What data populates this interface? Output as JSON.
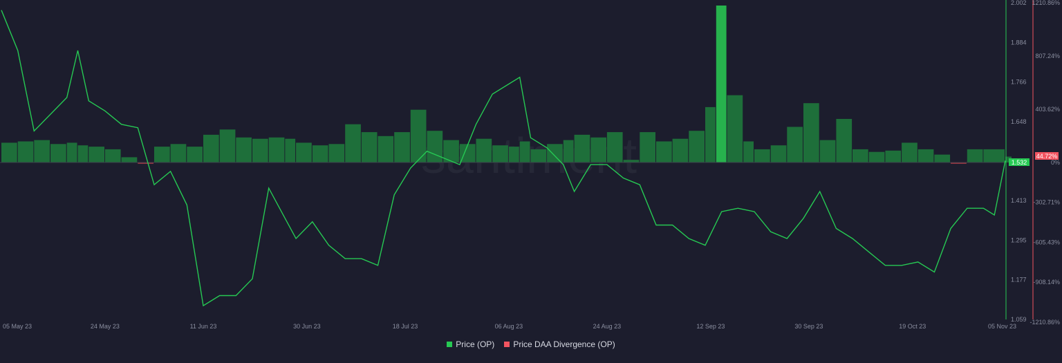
{
  "chart_data": {
    "type": "line+bar",
    "watermark": "santiment",
    "x_ticks": [
      "05 May 23",
      "24 May 23",
      "11 Jun 23",
      "30 Jun 23",
      "18 Jul 23",
      "06 Aug 23",
      "24 Aug 23",
      "12 Sep 23",
      "30 Sep 23",
      "19 Oct 23",
      "05 Nov 23"
    ],
    "left_axis": {
      "label": "",
      "ticks": [
        "2.002",
        "1.884",
        "1.766",
        "1.648",
        "1.532",
        "1.413",
        "1.295",
        "1.177",
        "1.059"
      ],
      "range": [
        1.059,
        2.002
      ]
    },
    "right_axis": {
      "label": "",
      "ticks": [
        "1210.86%",
        "807.24%",
        "403.62%",
        "0%",
        "-302.71%",
        "-605.43%",
        "-908.14%",
        "-1210.86%"
      ],
      "range": [
        -1210.86,
        1210.86
      ]
    },
    "current_price_label": "1.532",
    "current_divergence_label": "44.72%",
    "series": [
      {
        "name": "Price (OP)",
        "color": "#26c953",
        "axis": "left",
        "points": [
          [
            "05 May 23",
            1.98
          ],
          [
            "08 May 23",
            1.86
          ],
          [
            "11 May 23",
            1.62
          ],
          [
            "14 May 23",
            1.67
          ],
          [
            "17 May 23",
            1.72
          ],
          [
            "19 May 23",
            1.86
          ],
          [
            "21 May 23",
            1.71
          ],
          [
            "24 May 23",
            1.68
          ],
          [
            "27 May 23",
            1.64
          ],
          [
            "30 May 23",
            1.63
          ],
          [
            "02 Jun 23",
            1.46
          ],
          [
            "05 Jun 23",
            1.5
          ],
          [
            "08 Jun 23",
            1.4
          ],
          [
            "11 Jun 23",
            1.1
          ],
          [
            "14 Jun 23",
            1.13
          ],
          [
            "17 Jun 23",
            1.13
          ],
          [
            "20 Jun 23",
            1.18
          ],
          [
            "23 Jun 23",
            1.45
          ],
          [
            "26 Jun 23",
            1.36
          ],
          [
            "28 Jun 23",
            1.3
          ],
          [
            "01 Jul 23",
            1.35
          ],
          [
            "04 Jul 23",
            1.28
          ],
          [
            "07 Jul 23",
            1.24
          ],
          [
            "10 Jul 23",
            1.24
          ],
          [
            "13 Jul 23",
            1.22
          ],
          [
            "16 Jul 23",
            1.43
          ],
          [
            "19 Jul 23",
            1.51
          ],
          [
            "22 Jul 23",
            1.56
          ],
          [
            "25 Jul 23",
            1.54
          ],
          [
            "28 Jul 23",
            1.52
          ],
          [
            "31 Jul 23",
            1.64
          ],
          [
            "03 Aug 23",
            1.73
          ],
          [
            "06 Aug 23",
            1.76
          ],
          [
            "08 Aug 23",
            1.78
          ],
          [
            "10 Aug 23",
            1.6
          ],
          [
            "13 Aug 23",
            1.57
          ],
          [
            "16 Aug 23",
            1.52
          ],
          [
            "18 Aug 23",
            1.44
          ],
          [
            "21 Aug 23",
            1.52
          ],
          [
            "24 Aug 23",
            1.52
          ],
          [
            "27 Aug 23",
            1.48
          ],
          [
            "30 Aug 23",
            1.46
          ],
          [
            "02 Sep 23",
            1.34
          ],
          [
            "05 Sep 23",
            1.34
          ],
          [
            "08 Sep 23",
            1.3
          ],
          [
            "11 Sep 23",
            1.28
          ],
          [
            "14 Sep 23",
            1.38
          ],
          [
            "17 Sep 23",
            1.39
          ],
          [
            "20 Sep 23",
            1.38
          ],
          [
            "23 Sep 23",
            1.32
          ],
          [
            "26 Sep 23",
            1.3
          ],
          [
            "29 Sep 23",
            1.36
          ],
          [
            "02 Oct 23",
            1.44
          ],
          [
            "05 Oct 23",
            1.33
          ],
          [
            "08 Oct 23",
            1.3
          ],
          [
            "11 Oct 23",
            1.26
          ],
          [
            "14 Oct 23",
            1.22
          ],
          [
            "17 Oct 23",
            1.22
          ],
          [
            "20 Oct 23",
            1.23
          ],
          [
            "23 Oct 23",
            1.2
          ],
          [
            "26 Oct 23",
            1.33
          ],
          [
            "29 Oct 23",
            1.39
          ],
          [
            "01 Nov 23",
            1.39
          ],
          [
            "03 Nov 23",
            1.37
          ],
          [
            "05 Nov 23",
            1.532
          ]
        ]
      },
      {
        "name": "Price DAA Divergence (OP)",
        "color": "#f25460",
        "axis": "right",
        "points": [
          [
            "05 May 23",
            150
          ],
          [
            "08 May 23",
            160
          ],
          [
            "11 May 23",
            170
          ],
          [
            "14 May 23",
            140
          ],
          [
            "17 May 23",
            150
          ],
          [
            "19 May 23",
            130
          ],
          [
            "21 May 23",
            120
          ],
          [
            "24 May 23",
            100
          ],
          [
            "27 May 23",
            40
          ],
          [
            "30 May 23",
            -10
          ],
          [
            "02 Jun 23",
            120
          ],
          [
            "05 Jun 23",
            140
          ],
          [
            "08 Jun 23",
            120
          ],
          [
            "11 Jun 23",
            210
          ],
          [
            "14 Jun 23",
            250
          ],
          [
            "17 Jun 23",
            190
          ],
          [
            "20 Jun 23",
            180
          ],
          [
            "23 Jun 23",
            190
          ],
          [
            "26 Jun 23",
            180
          ],
          [
            "28 Jun 23",
            150
          ],
          [
            "01 Jul 23",
            130
          ],
          [
            "04 Jul 23",
            140
          ],
          [
            "07 Jul 23",
            290
          ],
          [
            "10 Jul 23",
            230
          ],
          [
            "13 Jul 23",
            200
          ],
          [
            "16 Jul 23",
            230
          ],
          [
            "19 Jul 23",
            400
          ],
          [
            "22 Jul 23",
            240
          ],
          [
            "25 Jul 23",
            170
          ],
          [
            "28 Jul 23",
            140
          ],
          [
            "31 Jul 23",
            180
          ],
          [
            "03 Aug 23",
            130
          ],
          [
            "06 Aug 23",
            120
          ],
          [
            "08 Aug 23",
            160
          ],
          [
            "10 Aug 23",
            100
          ],
          [
            "13 Aug 23",
            140
          ],
          [
            "16 Aug 23",
            170
          ],
          [
            "18 Aug 23",
            210
          ],
          [
            "21 Aug 23",
            190
          ],
          [
            "24 Aug 23",
            230
          ],
          [
            "27 Aug 23",
            20
          ],
          [
            "30 Aug 23",
            230
          ],
          [
            "02 Sep 23",
            160
          ],
          [
            "05 Sep 23",
            180
          ],
          [
            "08 Sep 23",
            240
          ],
          [
            "11 Sep 23",
            420
          ],
          [
            "13 Sep 23",
            1190
          ],
          [
            "15 Sep 23",
            510
          ],
          [
            "18 Sep 23",
            160
          ],
          [
            "20 Sep 23",
            100
          ],
          [
            "23 Sep 23",
            130
          ],
          [
            "26 Sep 23",
            270
          ],
          [
            "29 Sep 23",
            450
          ],
          [
            "02 Oct 23",
            170
          ],
          [
            "05 Oct 23",
            330
          ],
          [
            "08 Oct 23",
            100
          ],
          [
            "11 Oct 23",
            80
          ],
          [
            "14 Oct 23",
            90
          ],
          [
            "17 Oct 23",
            150
          ],
          [
            "20 Oct 23",
            100
          ],
          [
            "23 Oct 23",
            60
          ],
          [
            "26 Oct 23",
            -10
          ],
          [
            "29 Oct 23",
            100
          ],
          [
            "01 Nov 23",
            100
          ],
          [
            "05 Nov 23",
            44.72
          ]
        ]
      }
    ],
    "legend_placement": "bottom-center",
    "grid": false
  },
  "legend": {
    "items": [
      {
        "label": "Price (OP)",
        "color": "#26c953"
      },
      {
        "label": "Price DAA Divergence (OP)",
        "color": "#f25460"
      }
    ]
  }
}
